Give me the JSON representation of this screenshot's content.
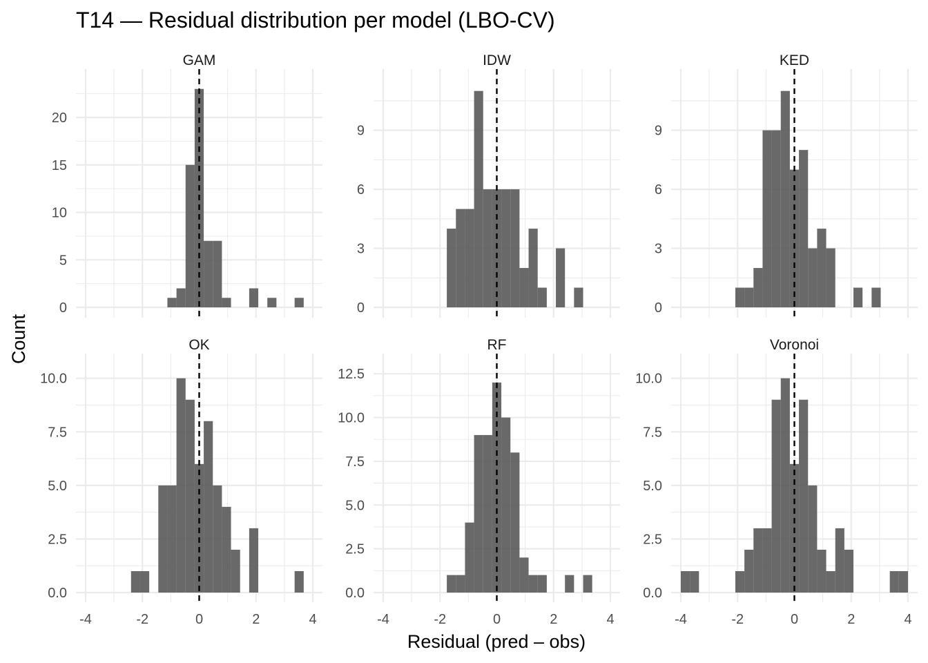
{
  "chart_data": {
    "type": "bar",
    "chart_kind": "faceted histogram",
    "title": "T14 — Residual distribution per model (LBO-CV)",
    "xlabel": "Residual (pred – obs)",
    "ylabel": "Count",
    "xlim": [
      -4,
      4
    ],
    "x_ticks": [
      "-4",
      "-2",
      "0",
      "2",
      "4"
    ],
    "grid": true,
    "reference_line": {
      "x": 0,
      "style": "dashed",
      "color": "#000000"
    },
    "bar_color": "#595959",
    "bin_width": 0.32,
    "panels": [
      {
        "name": "GAM",
        "ylim": [
          0,
          23.2
        ],
        "y_ticks": [
          0,
          5,
          10,
          15,
          20
        ],
        "y_tick_labels": [
          "0",
          "5",
          "10",
          "15",
          "20"
        ],
        "bins": [
          {
            "x0": -1.12,
            "x1": -0.8,
            "count": 1
          },
          {
            "x0": -0.8,
            "x1": -0.48,
            "count": 2
          },
          {
            "x0": -0.48,
            "x1": -0.16,
            "count": 15
          },
          {
            "x0": -0.16,
            "x1": 0.16,
            "count": 23
          },
          {
            "x0": 0.16,
            "x1": 0.48,
            "count": 7
          },
          {
            "x0": 0.48,
            "x1": 0.8,
            "count": 7
          },
          {
            "x0": 0.8,
            "x1": 1.12,
            "count": 1
          },
          {
            "x0": 1.76,
            "x1": 2.08,
            "count": 2
          },
          {
            "x0": 2.4,
            "x1": 2.72,
            "count": 1
          },
          {
            "x0": 3.36,
            "x1": 3.68,
            "count": 1
          }
        ]
      },
      {
        "name": "IDW",
        "ylim": [
          0,
          11.2
        ],
        "y_ticks": [
          0,
          3,
          6,
          9
        ],
        "y_tick_labels": [
          "0",
          "3",
          "6",
          "9"
        ],
        "bins": [
          {
            "x0": -1.76,
            "x1": -1.44,
            "count": 4
          },
          {
            "x0": -1.44,
            "x1": -1.12,
            "count": 5
          },
          {
            "x0": -1.12,
            "x1": -0.8,
            "count": 5
          },
          {
            "x0": -0.8,
            "x1": -0.48,
            "count": 11
          },
          {
            "x0": -0.48,
            "x1": -0.16,
            "count": 6
          },
          {
            "x0": -0.16,
            "x1": 0.16,
            "count": 6
          },
          {
            "x0": 0.16,
            "x1": 0.48,
            "count": 6
          },
          {
            "x0": 0.48,
            "x1": 0.8,
            "count": 6
          },
          {
            "x0": 0.8,
            "x1": 1.12,
            "count": 2
          },
          {
            "x0": 1.12,
            "x1": 1.44,
            "count": 4
          },
          {
            "x0": 1.44,
            "x1": 1.76,
            "count": 1
          },
          {
            "x0": 2.08,
            "x1": 2.4,
            "count": 3
          },
          {
            "x0": 2.72,
            "x1": 3.04,
            "count": 1
          }
        ]
      },
      {
        "name": "KED",
        "ylim": [
          0,
          11.2
        ],
        "y_ticks": [
          0,
          3,
          6,
          9
        ],
        "y_tick_labels": [
          "0",
          "3",
          "6",
          "9"
        ],
        "bins": [
          {
            "x0": -2.08,
            "x1": -1.76,
            "count": 1
          },
          {
            "x0": -1.76,
            "x1": -1.44,
            "count": 1
          },
          {
            "x0": -1.44,
            "x1": -1.12,
            "count": 2
          },
          {
            "x0": -1.12,
            "x1": -0.8,
            "count": 9
          },
          {
            "x0": -0.8,
            "x1": -0.48,
            "count": 9
          },
          {
            "x0": -0.48,
            "x1": -0.16,
            "count": 11
          },
          {
            "x0": -0.16,
            "x1": 0.16,
            "count": 7
          },
          {
            "x0": 0.16,
            "x1": 0.48,
            "count": 8
          },
          {
            "x0": 0.48,
            "x1": 0.8,
            "count": 3
          },
          {
            "x0": 0.8,
            "x1": 1.12,
            "count": 4
          },
          {
            "x0": 1.12,
            "x1": 1.44,
            "count": 3
          },
          {
            "x0": 2.08,
            "x1": 2.4,
            "count": 1
          },
          {
            "x0": 2.72,
            "x1": 3.04,
            "count": 1
          }
        ]
      },
      {
        "name": "OK",
        "ylim": [
          0,
          10.7
        ],
        "y_ticks": [
          0,
          2.5,
          5,
          7.5,
          10
        ],
        "y_tick_labels": [
          "0.0",
          "2.5",
          "5.0",
          "7.5",
          "10.0"
        ],
        "bins": [
          {
            "x0": -2.4,
            "x1": -2.08,
            "count": 1
          },
          {
            "x0": -2.08,
            "x1": -1.76,
            "count": 1
          },
          {
            "x0": -1.44,
            "x1": -1.12,
            "count": 5
          },
          {
            "x0": -1.12,
            "x1": -0.8,
            "count": 5
          },
          {
            "x0": -0.8,
            "x1": -0.48,
            "count": 10
          },
          {
            "x0": -0.48,
            "x1": -0.16,
            "count": 9
          },
          {
            "x0": -0.16,
            "x1": 0.16,
            "count": 6
          },
          {
            "x0": 0.16,
            "x1": 0.48,
            "count": 8
          },
          {
            "x0": 0.48,
            "x1": 0.8,
            "count": 5
          },
          {
            "x0": 0.8,
            "x1": 1.12,
            "count": 4
          },
          {
            "x0": 1.12,
            "x1": 1.44,
            "count": 2
          },
          {
            "x0": 1.76,
            "x1": 2.08,
            "count": 3
          },
          {
            "x0": 3.36,
            "x1": 3.68,
            "count": 1
          }
        ]
      },
      {
        "name": "RF",
        "ylim": [
          0,
          13.1
        ],
        "y_ticks": [
          0,
          2.5,
          5,
          7.5,
          10,
          12.5
        ],
        "y_tick_labels": [
          "0.0",
          "2.5",
          "5.0",
          "7.5",
          "10.0",
          "12.5"
        ],
        "bins": [
          {
            "x0": -1.76,
            "x1": -1.44,
            "count": 1
          },
          {
            "x0": -1.44,
            "x1": -1.12,
            "count": 1
          },
          {
            "x0": -1.12,
            "x1": -0.8,
            "count": 4
          },
          {
            "x0": -0.8,
            "x1": -0.48,
            "count": 9
          },
          {
            "x0": -0.48,
            "x1": -0.16,
            "count": 9
          },
          {
            "x0": -0.16,
            "x1": 0.16,
            "count": 12
          },
          {
            "x0": 0.16,
            "x1": 0.48,
            "count": 10
          },
          {
            "x0": 0.48,
            "x1": 0.8,
            "count": 8
          },
          {
            "x0": 0.8,
            "x1": 1.12,
            "count": 2
          },
          {
            "x0": 1.12,
            "x1": 1.44,
            "count": 1
          },
          {
            "x0": 1.44,
            "x1": 1.76,
            "count": 1
          },
          {
            "x0": 2.4,
            "x1": 2.72,
            "count": 1
          },
          {
            "x0": 3.04,
            "x1": 3.36,
            "count": 1
          }
        ]
      },
      {
        "name": "Voronoi",
        "ylim": [
          0,
          10.7
        ],
        "y_ticks": [
          0,
          2.5,
          5,
          7.5,
          10
        ],
        "y_tick_labels": [
          "0.0",
          "2.5",
          "5.0",
          "7.5",
          "10.0"
        ],
        "bins": [
          {
            "x0": -4.0,
            "x1": -3.68,
            "count": 1
          },
          {
            "x0": -3.68,
            "x1": -3.36,
            "count": 1
          },
          {
            "x0": -2.08,
            "x1": -1.76,
            "count": 1
          },
          {
            "x0": -1.76,
            "x1": -1.44,
            "count": 2
          },
          {
            "x0": -1.44,
            "x1": -1.12,
            "count": 3
          },
          {
            "x0": -1.12,
            "x1": -0.8,
            "count": 3
          },
          {
            "x0": -0.8,
            "x1": -0.48,
            "count": 9
          },
          {
            "x0": -0.48,
            "x1": -0.16,
            "count": 10
          },
          {
            "x0": -0.16,
            "x1": 0.16,
            "count": 6
          },
          {
            "x0": 0.16,
            "x1": 0.48,
            "count": 9
          },
          {
            "x0": 0.48,
            "x1": 0.8,
            "count": 5
          },
          {
            "x0": 0.8,
            "x1": 1.12,
            "count": 2
          },
          {
            "x0": 1.12,
            "x1": 1.44,
            "count": 1
          },
          {
            "x0": 1.44,
            "x1": 1.76,
            "count": 3
          },
          {
            "x0": 1.76,
            "x1": 2.08,
            "count": 2
          },
          {
            "x0": 3.36,
            "x1": 3.68,
            "count": 1
          },
          {
            "x0": 3.68,
            "x1": 4.0,
            "count": 1
          }
        ]
      }
    ]
  }
}
